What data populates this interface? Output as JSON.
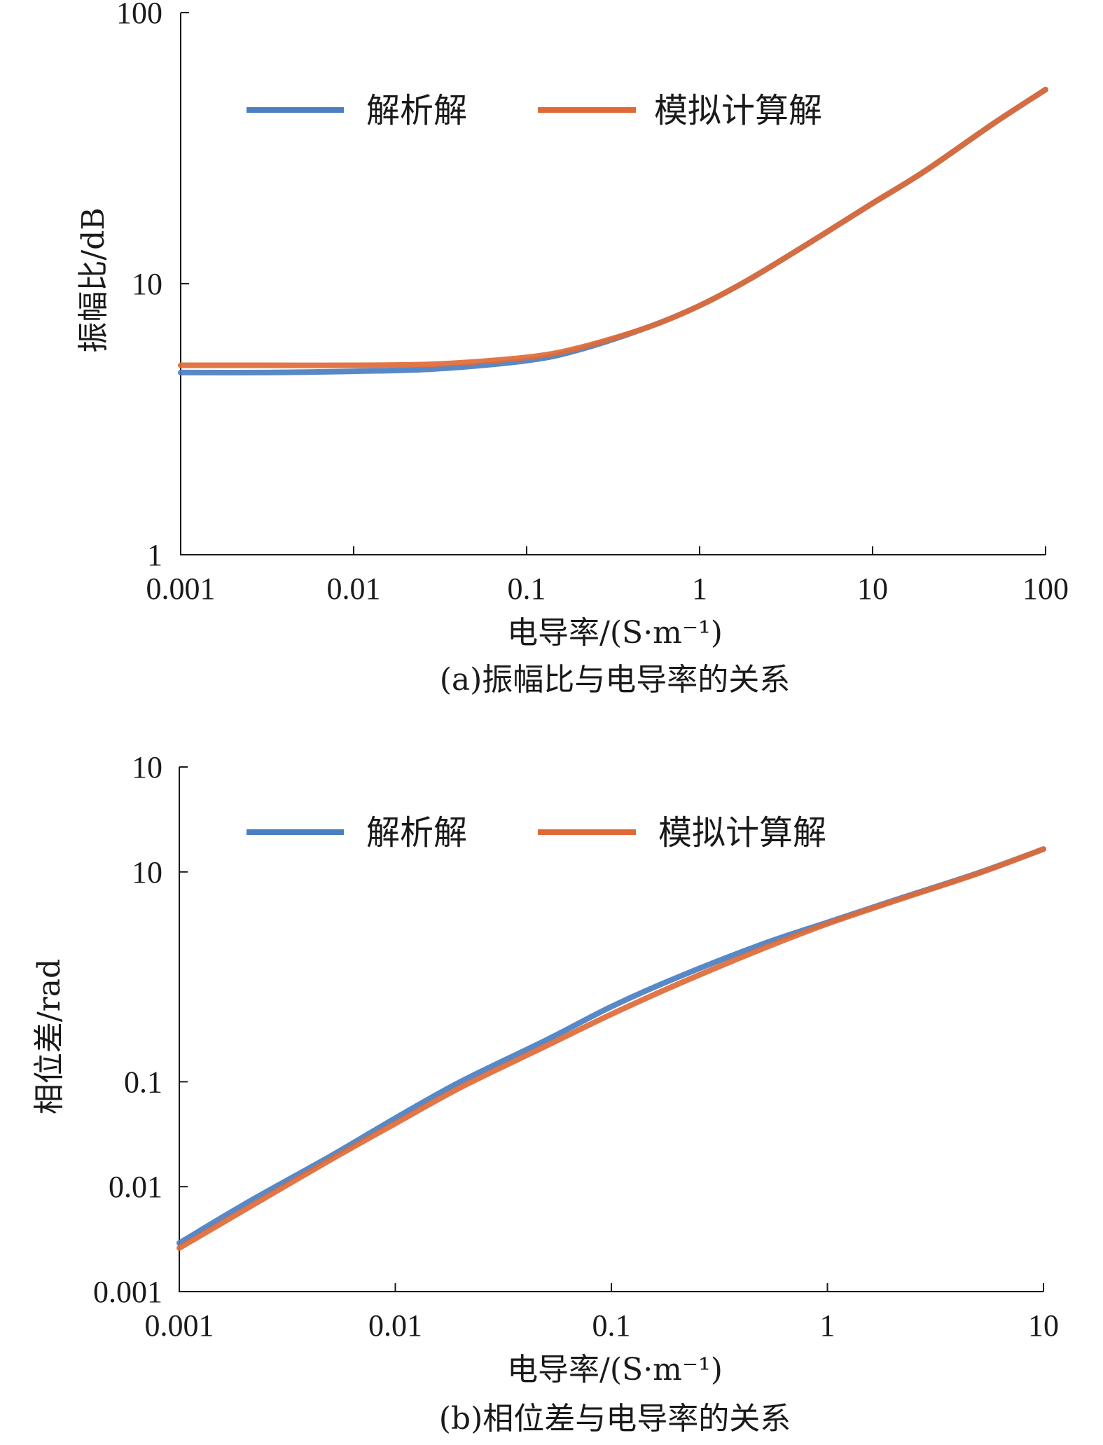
{
  "chart_data": [
    {
      "type": "line",
      "caption": "(a)振幅比与电导率的关系",
      "xlabel": "电导率/(S·m⁻¹)",
      "ylabel": "振幅比/dB",
      "xscale": "log",
      "yscale": "log",
      "xlim": [
        0.001,
        100
      ],
      "ylim": [
        1,
        100
      ],
      "xticks": [
        "0.001",
        "0.01",
        "0.1",
        "1",
        "10",
        "100"
      ],
      "yticks": [
        "1",
        "10",
        "100"
      ],
      "legend_position": "top",
      "series": [
        {
          "name": "解析解",
          "color": "#4a7fc1",
          "x": [
            0.001,
            0.003,
            0.01,
            0.03,
            0.1,
            0.2,
            0.5,
            1,
            2,
            5,
            10,
            20,
            50,
            100
          ],
          "y": [
            4.7,
            4.7,
            4.75,
            4.85,
            5.2,
            5.7,
            6.9,
            8.3,
            10.5,
            15.0,
            19.8,
            26.0,
            39.0,
            52.0
          ]
        },
        {
          "name": "模拟计算解",
          "color": "#e06a37",
          "x": [
            0.001,
            0.003,
            0.01,
            0.03,
            0.1,
            0.2,
            0.5,
            1,
            2,
            5,
            10,
            20,
            50,
            100
          ],
          "y": [
            5.0,
            5.0,
            5.0,
            5.05,
            5.35,
            5.8,
            6.9,
            8.3,
            10.5,
            15.0,
            19.8,
            26.0,
            39.0,
            52.0
          ]
        }
      ]
    },
    {
      "type": "line",
      "caption": "(b)相位差与电导率的关系",
      "xlabel": "电导率/(S·m⁻¹)",
      "ylabel": "相位差/rad",
      "xscale": "log",
      "yscale": "log",
      "xlim": [
        0.001,
        10
      ],
      "ylim": [
        0.001,
        100
      ],
      "xticks": [
        "0.001",
        "0.01",
        "0.1",
        "1",
        "10"
      ],
      "yticks": [
        "0.001",
        "0.01",
        "0.1",
        "10",
        "10"
      ],
      "legend_position": "top",
      "series": [
        {
          "name": "解析解",
          "color": "#4a7fc1",
          "x": [
            0.001,
            0.002,
            0.005,
            0.01,
            0.02,
            0.05,
            0.1,
            0.2,
            0.5,
            1,
            2,
            5,
            10
          ],
          "y": [
            0.0029,
            0.0068,
            0.0195,
            0.045,
            0.1,
            0.25,
            0.52,
            0.98,
            2.05,
            3.3,
            5.3,
            9.8,
            16.5
          ]
        },
        {
          "name": "模拟计算解",
          "color": "#e06a37",
          "x": [
            0.001,
            0.002,
            0.005,
            0.01,
            0.02,
            0.05,
            0.1,
            0.2,
            0.5,
            1,
            2,
            5,
            10
          ],
          "y": [
            0.0026,
            0.006,
            0.018,
            0.04,
            0.088,
            0.22,
            0.44,
            0.84,
            1.85,
            3.2,
            5.2,
            9.7,
            16.5
          ]
        }
      ]
    }
  ]
}
